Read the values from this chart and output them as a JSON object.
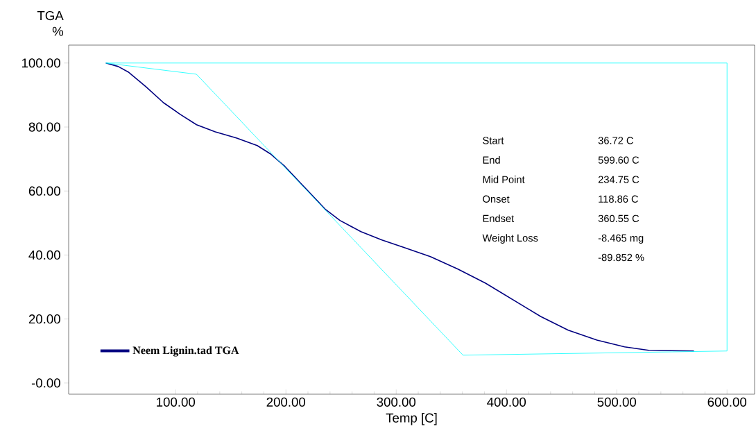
{
  "chart_data": {
    "type": "line",
    "ylabel": "TGA %",
    "xlabel": "Temp [C]",
    "xlim": [
      3,
      625
    ],
    "ylim": [
      -3.5,
      105.6
    ],
    "xticks": [
      {
        "value": 100,
        "label": "100.00"
      },
      {
        "value": 200,
        "label": "200.00"
      },
      {
        "value": 300,
        "label": "300.00"
      },
      {
        "value": 400,
        "label": "400.00"
      },
      {
        "value": 500,
        "label": "500.00"
      },
      {
        "value": 600,
        "label": "600.00"
      }
    ],
    "yticks": [
      {
        "value": 0,
        "label": "-0.00"
      },
      {
        "value": 20,
        "label": "20.00"
      },
      {
        "value": 40,
        "label": "40.00"
      },
      {
        "value": 60,
        "label": "60.00"
      },
      {
        "value": 80,
        "label": "80.00"
      },
      {
        "value": 100,
        "label": "100.00"
      }
    ],
    "legend": "bottom left",
    "grid": false,
    "marker": "none",
    "line_style": "solid",
    "series": [
      {
        "name": "Neem Lignin.tad TGA",
        "color": "#000080",
        "x": [
          36.72,
          48,
          57,
          73,
          89,
          104,
          119,
          136,
          155,
          174,
          186,
          199,
          211,
          224,
          236,
          249,
          268,
          287,
          306,
          331,
          356,
          381,
          406,
          431,
          456,
          482,
          507,
          529,
          570
        ],
        "values": [
          100,
          98.9,
          97.2,
          92.6,
          87.6,
          84,
          80.7,
          78.5,
          76.6,
          74.2,
          71.6,
          67.7,
          63.3,
          58.6,
          54.2,
          50.8,
          47.3,
          44.7,
          42.5,
          39.5,
          35.6,
          31.2,
          26,
          20.8,
          16.5,
          13.4,
          11.3,
          10.2,
          10
        ]
      },
      {
        "color": "#00ffff",
        "x": [
          36.72,
          118.86,
          360.55,
          600
        ],
        "values": [
          100,
          96.5,
          8.7,
          10
        ]
      },
      {
        "color": "#00ffff",
        "x": [
          600,
          600
        ],
        "values": [
          10,
          100
        ]
      },
      {
        "color": "#00ffff",
        "x": [
          36.72,
          600
        ],
        "values": [
          100,
          100
        ]
      }
    ],
    "annotations": [
      "Start",
      "36.72 C",
      "End",
      "599.60 C",
      "Mid Point",
      "234.75 C",
      "Onset",
      "118.86 C",
      "Endset",
      "360.55 C",
      "Weight Loss",
      "-8.465 mg",
      "-89.852 %"
    ]
  }
}
